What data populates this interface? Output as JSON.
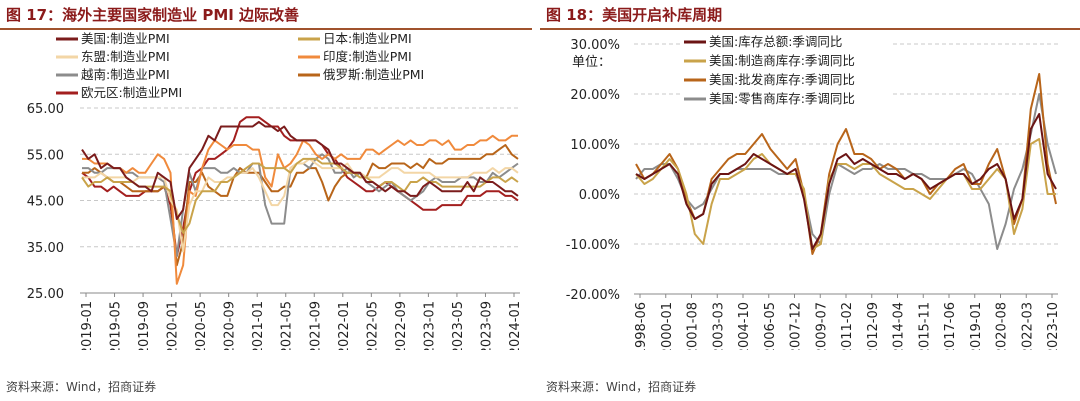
{
  "left": {
    "title": "图 17：海外主要国家制造业 PMI 边际改善",
    "source": "资料来源：Wind，招商证券",
    "chart_data": {
      "type": "line",
      "y_ticks": [
        "65.00",
        "55.00",
        "45.00",
        "35.00",
        "25.00"
      ],
      "ylim": [
        25,
        65
      ],
      "x_ticks": [
        "2019-01",
        "2019-05",
        "2019-09",
        "2020-01",
        "2020-05",
        "2020-09",
        "2021-01",
        "2021-05",
        "2021-09",
        "2022-01",
        "2022-05",
        "2022-09",
        "2023-01",
        "2023-05",
        "2023-09",
        "2024-01"
      ],
      "series": [
        {
          "name": "美国:制造业PMI",
          "color": "#7b1c1c",
          "values": [
            56,
            54,
            55,
            52,
            53,
            52,
            52,
            50,
            49,
            48,
            48,
            47,
            51,
            50,
            49,
            41,
            43,
            52,
            54,
            56,
            59,
            58,
            61,
            61,
            61,
            61,
            61,
            61,
            62,
            61,
            61,
            60,
            61,
            59,
            58,
            58,
            58,
            58,
            57,
            56,
            53,
            53,
            52,
            51,
            51,
            49,
            49,
            48,
            47,
            48,
            47,
            47,
            46,
            46,
            48,
            49,
            48,
            47,
            47,
            47,
            47,
            49,
            47,
            50,
            49,
            49,
            48,
            47,
            47,
            46
          ]
        },
        {
          "name": "日本:制造业PMI",
          "color": "#c9a34a",
          "values": [
            50,
            48,
            49,
            49,
            50,
            49,
            49,
            49,
            49,
            48,
            48,
            48,
            48,
            48,
            47,
            42,
            38,
            40,
            45,
            47,
            47,
            47,
            49,
            49,
            50,
            51,
            52,
            53,
            53,
            52,
            52,
            52,
            52,
            51,
            53,
            54,
            54,
            54,
            53,
            53,
            53,
            52,
            51,
            51,
            50,
            50,
            49,
            48,
            49,
            49,
            48,
            47,
            49,
            49,
            50,
            49,
            49,
            48,
            48,
            48,
            48,
            48,
            48,
            48,
            49,
            50,
            50,
            49,
            50,
            49
          ]
        },
        {
          "name": "东盟:制造业PMI",
          "color": "#f3d6a6",
          "values": [
            50,
            50,
            50,
            51,
            50,
            50,
            50,
            50,
            49,
            50,
            50,
            50,
            50,
            50,
            45,
            43,
            34,
            44,
            47,
            47,
            50,
            49,
            49,
            50,
            50,
            51,
            51,
            52,
            50,
            47,
            44,
            44,
            46,
            52,
            53,
            53,
            54,
            53,
            52,
            52,
            52,
            52,
            53,
            51,
            51,
            50,
            50,
            50,
            51,
            52,
            52,
            51,
            51,
            51,
            51,
            51,
            50,
            50,
            50,
            50,
            50,
            50,
            51,
            51,
            51,
            52,
            51,
            52,
            52,
            51
          ]
        },
        {
          "name": "印度:制造业PMI",
          "color": "#f08a3c",
          "values": [
            54,
            54,
            53,
            53,
            53,
            52,
            52,
            51,
            52,
            51,
            51,
            53,
            55,
            54,
            51,
            27,
            31,
            47,
            46,
            52,
            56,
            58,
            57,
            56,
            57,
            57,
            57,
            56,
            56,
            50,
            48,
            55,
            52,
            53,
            55,
            58,
            57,
            55,
            54,
            55,
            54,
            55,
            54,
            54,
            54,
            56,
            56,
            55,
            56,
            57,
            58,
            57,
            58,
            57,
            57,
            58,
            58,
            57,
            58,
            56,
            56,
            57,
            57,
            58,
            58,
            59,
            58,
            58,
            59,
            59
          ]
        },
        {
          "name": "越南:制造业PMI",
          "color": "#8c8c8c",
          "values": [
            52,
            52,
            51,
            51,
            52,
            52,
            52,
            51,
            51,
            50,
            50,
            50,
            50,
            49,
            41,
            33,
            43,
            51,
            47,
            52,
            52,
            52,
            51,
            51,
            52,
            51,
            51,
            53,
            53,
            44,
            40,
            40,
            40,
            52,
            53,
            53,
            52,
            54,
            55,
            54,
            51,
            51,
            52,
            50,
            51,
            49,
            48,
            47,
            48,
            49,
            47,
            46,
            45,
            46,
            47,
            49,
            50,
            49,
            49,
            49,
            50,
            50,
            50,
            49,
            49,
            51,
            50,
            51,
            52,
            53
          ]
        },
        {
          "name": "俄罗斯:制造业PMI",
          "color": "#b8651a",
          "values": [
            51,
            51,
            52,
            51,
            50,
            49,
            49,
            48,
            47,
            47,
            47,
            47,
            47,
            48,
            47,
            31,
            36,
            49,
            49,
            51,
            48,
            47,
            46,
            46,
            50,
            52,
            51,
            51,
            51,
            49,
            47,
            47,
            48,
            48,
            51,
            51,
            52,
            52,
            49,
            45,
            48,
            50,
            51,
            51,
            51,
            50,
            53,
            52,
            52,
            53,
            53,
            53,
            52,
            53,
            52,
            54,
            53,
            53,
            54,
            54,
            54,
            54,
            54,
            54,
            55,
            55,
            56,
            57,
            55,
            54
          ]
        },
        {
          "name": "欧元区:制造业PMI",
          "color": "#a31f1f",
          "values": [
            51,
            50,
            48,
            48,
            47,
            48,
            47,
            46,
            46,
            46,
            47,
            47,
            47,
            48,
            44,
            33,
            39,
            47,
            51,
            52,
            54,
            54,
            55,
            56,
            58,
            62,
            63,
            63,
            63,
            62,
            61,
            61,
            59,
            58,
            58,
            58,
            58,
            58,
            57,
            55,
            54,
            52,
            50,
            49,
            48,
            47,
            47,
            48,
            49,
            48,
            47,
            46,
            45,
            44,
            43,
            43,
            43,
            44,
            44,
            44,
            44,
            46,
            46,
            46,
            47,
            47,
            47,
            46,
            46,
            45
          ]
        }
      ]
    }
  },
  "right": {
    "title": "图 18：美国开启补库周期",
    "source": "资料来源：Wind，招商证券",
    "unit": "单位：",
    "chart_data": {
      "type": "line",
      "y_ticks": [
        "30.00%",
        "20.00%",
        "10.00%",
        "0.00%",
        "-10.00%",
        "-20.00%"
      ],
      "ylim": [
        -20,
        30
      ],
      "x_ticks": [
        "1998-06",
        "2000-01",
        "2001-08",
        "2003-03",
        "2004-10",
        "2006-05",
        "2007-12",
        "2009-07",
        "2011-02",
        "2012-09",
        "2014-04",
        "2015-11",
        "2017-06",
        "2019-01",
        "2020-08",
        "2022-03",
        "2023-10"
      ],
      "series": [
        {
          "name": "美国:库存总额:季调同比",
          "color": "#6b1414",
          "values": [
            4,
            3,
            4,
            5,
            6,
            4,
            -2,
            -5,
            -4,
            2,
            4,
            4,
            5,
            6,
            8,
            7,
            6,
            5,
            4,
            5,
            -1,
            -11,
            -8,
            2,
            7,
            8,
            6,
            7,
            6,
            5,
            4,
            4,
            3,
            4,
            3,
            1,
            2,
            3,
            4,
            4,
            2,
            3,
            5,
            6,
            3,
            -5,
            -1,
            13,
            16,
            4,
            1
          ]
        },
        {
          "name": "美国:制造商库存:季调同比",
          "color": "#c9a34a",
          "values": [
            4,
            2,
            3,
            5,
            7,
            5,
            0,
            -8,
            -10,
            -2,
            3,
            3,
            4,
            5,
            7,
            8,
            6,
            5,
            4,
            4,
            1,
            -11,
            -10,
            3,
            6,
            6,
            5,
            6,
            6,
            4,
            3,
            2,
            1,
            1,
            0,
            -1,
            1,
            3,
            4,
            4,
            1,
            1,
            3,
            5,
            3,
            -8,
            -3,
            10,
            11,
            0,
            0
          ]
        },
        {
          "name": "美国:批发商库存:季调同比",
          "color": "#b8651a",
          "values": [
            6,
            3,
            4,
            6,
            8,
            5,
            -1,
            -5,
            -4,
            3,
            5,
            7,
            8,
            8,
            10,
            12,
            9,
            7,
            5,
            7,
            0,
            -12,
            -8,
            4,
            10,
            13,
            8,
            8,
            7,
            5,
            6,
            5,
            3,
            4,
            3,
            0,
            2,
            3,
            5,
            6,
            2,
            2,
            6,
            9,
            3,
            -6,
            -1,
            17,
            24,
            6,
            -2
          ]
        },
        {
          "name": "美国:零售商库存:季调同比",
          "color": "#8c8c8c",
          "values": [
            3,
            5,
            5,
            6,
            6,
            3,
            -1,
            -3,
            -2,
            1,
            4,
            4,
            5,
            5,
            5,
            5,
            5,
            4,
            4,
            4,
            0,
            -8,
            -10,
            0,
            6,
            5,
            4,
            5,
            5,
            6,
            5,
            5,
            5,
            4,
            4,
            3,
            3,
            3,
            4,
            5,
            4,
            1,
            -2,
            -11,
            -6,
            1,
            5,
            12,
            20,
            10,
            4
          ]
        }
      ]
    }
  }
}
